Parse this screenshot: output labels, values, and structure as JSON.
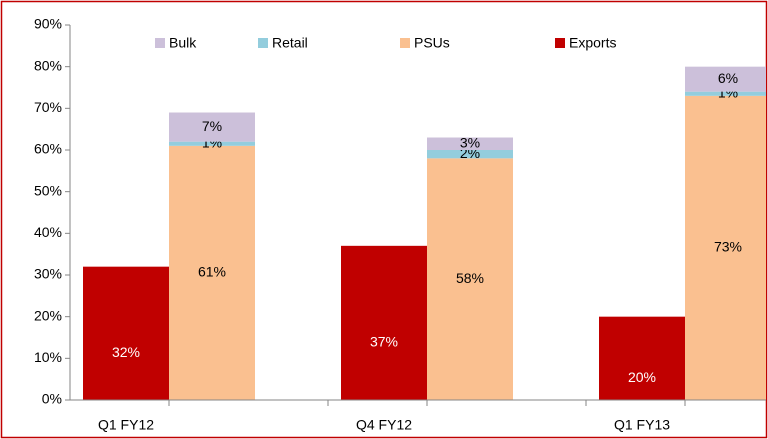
{
  "chart_data": {
    "type": "bar",
    "categories": [
      "Q1 FY12",
      "Q4 FY12",
      "Q1 FY13"
    ],
    "series": [
      {
        "name": "Exports",
        "color": "#c00000",
        "values": [
          32,
          37,
          20
        ],
        "value_labels": [
          "32%",
          "37%",
          "20%"
        ]
      },
      {
        "name": "PSUs",
        "color": "#fac090",
        "values": [
          61,
          58,
          73
        ],
        "value_labels": [
          "61%",
          "58%",
          "73%"
        ]
      },
      {
        "name": "Retail",
        "color": "#93cddd",
        "values": [
          1,
          2,
          1
        ],
        "value_labels": [
          "1%",
          "2%",
          "1%"
        ]
      },
      {
        "name": "Bulk",
        "color": "#ccc0da",
        "values": [
          7,
          3,
          6
        ],
        "value_labels": [
          "7%",
          "3%",
          "6%"
        ]
      }
    ],
    "ylim": [
      0,
      90
    ],
    "yticks": [
      {
        "value": 0,
        "label": "0%"
      },
      {
        "value": 10,
        "label": "10%"
      },
      {
        "value": 20,
        "label": "20%"
      },
      {
        "value": 30,
        "label": "30%"
      },
      {
        "value": 40,
        "label": "40%"
      },
      {
        "value": 50,
        "label": "50%"
      },
      {
        "value": 60,
        "label": "60%"
      },
      {
        "value": 70,
        "label": "70%"
      },
      {
        "value": 80,
        "label": "80%"
      },
      {
        "value": 90,
        "label": "90%"
      }
    ],
    "grid": false
  }
}
